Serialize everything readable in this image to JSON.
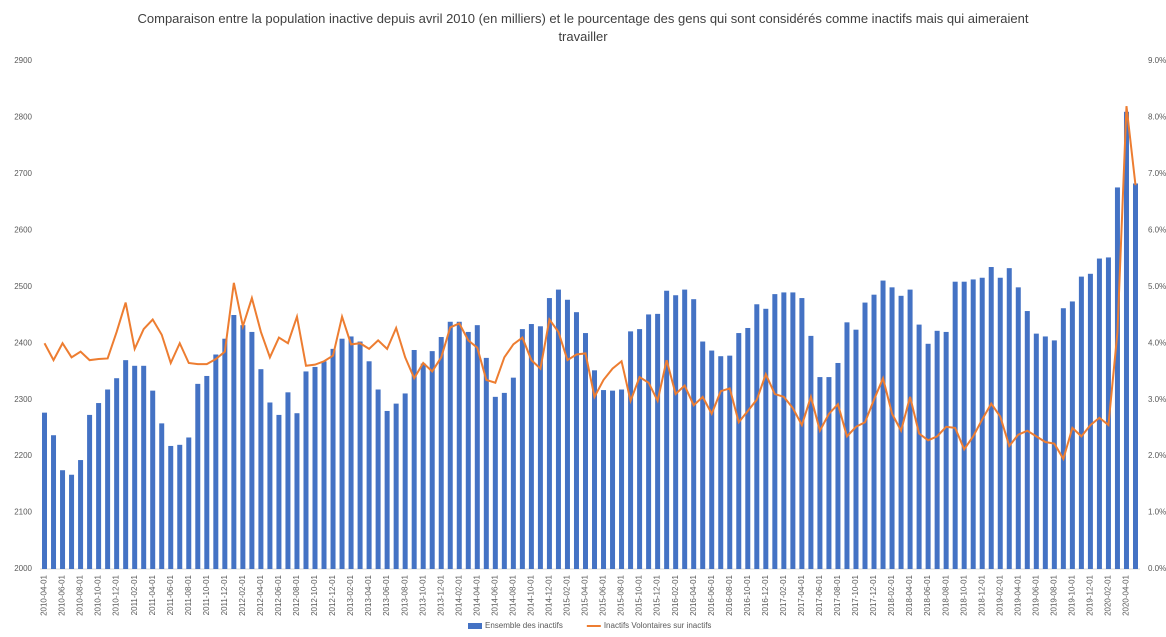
{
  "chart_data": {
    "type": "bar_line",
    "title": "Comparaison entre la population inactive depuis avril 2010 (en milliers) et le pourcentage des gens qui sont considérés comme inactifs mais qui aimeraient travailler",
    "categories": [
      "2010-04-01",
      null,
      "2010-06-01",
      null,
      "2010-08-01",
      null,
      "2010-10-01",
      null,
      "2010-12-01",
      null,
      "2011-02-01",
      null,
      "2011-04-01",
      null,
      "2011-06-01",
      null,
      "2011-08-01",
      null,
      "2011-10-01",
      null,
      "2011-12-01",
      null,
      "2012-02-01",
      null,
      "2012-04-01",
      null,
      "2012-06-01",
      null,
      "2012-08-01",
      null,
      "2012-10-01",
      null,
      "2012-12-01",
      null,
      "2013-02-01",
      null,
      "2013-04-01",
      null,
      "2013-06-01",
      null,
      "2013-08-01",
      null,
      "2013-10-01",
      null,
      "2013-12-01",
      null,
      "2014-02-01",
      null,
      "2014-04-01",
      null,
      "2014-06-01",
      null,
      "2014-08-01",
      null,
      "2014-10-01",
      null,
      "2014-12-01",
      null,
      "2015-02-01",
      null,
      "2015-04-01",
      null,
      "2015-06-01",
      null,
      "2015-08-01",
      null,
      "2015-10-01",
      null,
      "2015-12-01",
      null,
      "2016-02-01",
      null,
      "2016-04-01",
      null,
      "2016-06-01",
      null,
      "2016-08-01",
      null,
      "2016-10-01",
      null,
      "2016-12-01",
      null,
      "2017-02-01",
      null,
      "2017-04-01",
      null,
      "2017-06-01",
      null,
      "2017-08-01",
      null,
      "2017-10-01",
      null,
      "2017-12-01",
      null,
      "2018-02-01",
      null,
      "2018-04-01",
      null,
      "2018-06-01",
      null,
      "2018-08-01",
      null,
      "2018-10-01",
      null,
      "2018-12-01",
      null,
      "2019-02-01",
      null,
      "2019-04-01",
      null,
      "2019-06-01",
      null,
      "2019-08-01",
      null,
      "2019-10-01",
      null,
      "2019-12-01",
      null,
      "2020-02-01",
      null,
      "2020-04-01",
      null
    ],
    "series": [
      {
        "name": "Ensemble des inactifs",
        "color": "#4472c4",
        "kind": "bar",
        "axis": "y",
        "values": [
          2277,
          2237,
          2175,
          2167,
          2193,
          2273,
          2294,
          2318,
          2338,
          2370,
          2360,
          2360,
          2316,
          2258,
          2218,
          2220,
          2233,
          2328,
          2342,
          2380,
          2408,
          2450,
          2432,
          2420,
          2354,
          2295,
          2273,
          2313,
          2276,
          2350,
          2358,
          2368,
          2390,
          2408,
          2412,
          2403,
          2368,
          2318,
          2280,
          2293,
          2311,
          2388,
          2364,
          2386,
          2411,
          2438,
          2438,
          2420,
          2432,
          2374,
          2305,
          2312,
          2339,
          2425,
          2434,
          2430,
          2480,
          2495,
          2477,
          2455,
          2418,
          2352,
          2317,
          2316,
          2318,
          2421,
          2425,
          2451,
          2452,
          2493,
          2485,
          2495,
          2478,
          2403,
          2387,
          2377,
          2378,
          2418,
          2427,
          2469,
          2461,
          2487,
          2490,
          2490,
          2480,
          2413,
          2340,
          2340,
          2365,
          2437,
          2424,
          2472,
          2486,
          2511,
          2499,
          2484,
          2495,
          2433,
          2399,
          2422,
          2420,
          2509,
          2509,
          2513,
          2516,
          2535,
          2516,
          2533,
          2499,
          2457,
          2417,
          2412,
          2405,
          2462,
          2474,
          2518,
          2523,
          2550,
          2552,
          2676,
          2810,
          2683
        ]
      },
      {
        "name": "Inactifs Volontaires sur inactifs",
        "color": "#ed7d31",
        "kind": "line",
        "axis": "y2",
        "values": [
          4.0,
          3.7,
          4.0,
          3.75,
          3.85,
          3.7,
          3.72,
          3.73,
          4.2,
          4.72,
          3.9,
          4.25,
          4.42,
          4.15,
          3.65,
          4.0,
          3.65,
          3.63,
          3.63,
          3.72,
          3.85,
          5.07,
          4.3,
          4.8,
          4.2,
          3.75,
          4.1,
          4.0,
          4.47,
          3.6,
          3.62,
          3.68,
          3.78,
          4.47,
          3.98,
          4.0,
          3.9,
          4.05,
          3.9,
          4.27,
          3.75,
          3.38,
          3.65,
          3.5,
          3.75,
          4.28,
          4.35,
          4.05,
          3.92,
          3.35,
          3.3,
          3.75,
          3.98,
          4.1,
          3.7,
          3.55,
          4.42,
          4.2,
          3.7,
          3.8,
          3.82,
          3.05,
          3.35,
          3.55,
          3.68,
          2.98,
          3.4,
          3.3,
          2.98,
          3.7,
          3.1,
          3.25,
          2.9,
          3.05,
          2.75,
          3.15,
          3.2,
          2.6,
          2.8,
          3.0,
          3.45,
          3.1,
          3.05,
          2.85,
          2.55,
          3.05,
          2.45,
          2.75,
          2.92,
          2.35,
          2.52,
          2.6,
          3.0,
          3.38,
          2.75,
          2.45,
          3.05,
          2.4,
          2.28,
          2.35,
          2.52,
          2.5,
          2.12,
          2.35,
          2.65,
          2.93,
          2.7,
          2.18,
          2.38,
          2.45,
          2.35,
          2.25,
          2.22,
          1.95,
          2.5,
          2.35,
          2.55,
          2.68,
          2.55,
          4.2,
          8.2,
          6.8
        ]
      }
    ],
    "ylim": [
      2000,
      2900
    ],
    "yticks": [
      2000,
      2100,
      2200,
      2300,
      2400,
      2500,
      2600,
      2700,
      2800,
      2900
    ],
    "y2lim": [
      0,
      9
    ],
    "y2ticks": [
      {
        "value": 0,
        "label": "0.0%"
      },
      {
        "value": 1,
        "label": "1.0%"
      },
      {
        "value": 2,
        "label": "2.0%"
      },
      {
        "value": 3,
        "label": "3.0%"
      },
      {
        "value": 4,
        "label": "4.0%"
      },
      {
        "value": 5,
        "label": "5.0%"
      },
      {
        "value": 6,
        "label": "6.0%"
      },
      {
        "value": 7,
        "label": "7.0%"
      },
      {
        "value": 8,
        "label": "8.0%"
      },
      {
        "value": 9,
        "label": "9.0%"
      }
    ],
    "grid": false,
    "legend": "bottom"
  }
}
